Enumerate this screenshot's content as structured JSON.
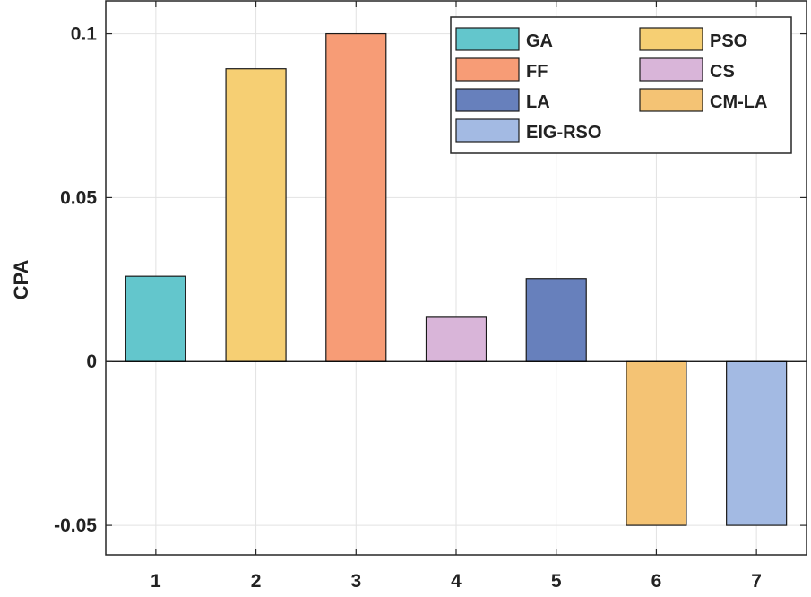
{
  "chart_data": {
    "type": "bar",
    "title": "",
    "xlabel": "",
    "ylabel": "CPA",
    "categories": [
      "1",
      "2",
      "3",
      "4",
      "5",
      "6",
      "7"
    ],
    "series": [
      {
        "name": "GA",
        "values": [
          0.026,
          null,
          null,
          null,
          null,
          null,
          null
        ],
        "color": "#63c6cc"
      },
      {
        "name": "FF",
        "values": [
          null,
          null,
          0.1,
          null,
          null,
          null,
          null
        ],
        "color": "#f79c76"
      },
      {
        "name": "LA",
        "values": [
          null,
          null,
          null,
          null,
          0.0253,
          null,
          null
        ],
        "color": "#6780bc"
      },
      {
        "name": "EIG-RSO",
        "values": [
          null,
          null,
          null,
          null,
          null,
          null,
          -0.05
        ],
        "color": "#a3bae3"
      },
      {
        "name": "PSO",
        "values": [
          null,
          0.0893,
          null,
          null,
          null,
          null,
          null
        ],
        "color": "#f6cf73"
      },
      {
        "name": "CS",
        "values": [
          null,
          null,
          null,
          0.0135,
          null,
          null,
          null
        ],
        "color": "#d9b5d9"
      },
      {
        "name": "CM-LA",
        "values": [
          null,
          null,
          null,
          null,
          null,
          -0.05,
          null
        ],
        "color": "#f4c374"
      }
    ],
    "ylim": [
      -0.059,
      0.11
    ],
    "yticks": [
      -0.05,
      0,
      0.05,
      0.1
    ],
    "ytick_labels": [
      "-0.05",
      "0",
      "0.05",
      "0.1"
    ],
    "grid": true,
    "legend_position": "top-right",
    "legend_columns": 2
  }
}
